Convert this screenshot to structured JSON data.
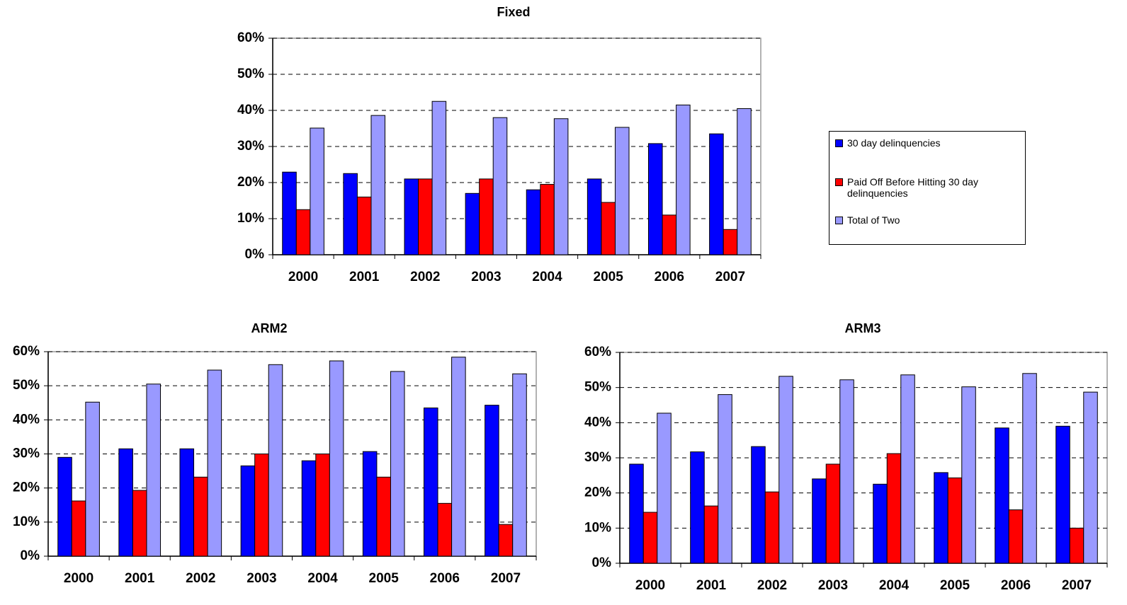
{
  "chart_data": [
    {
      "type": "bar",
      "title": "Fixed",
      "categories": [
        "2000",
        "2001",
        "2002",
        "2003",
        "2004",
        "2005",
        "2006",
        "2007"
      ],
      "series": [
        {
          "name": "30 day delinquencies",
          "color": "#0000ff",
          "values": [
            22.9,
            22.5,
            21,
            17,
            18,
            21,
            30.8,
            33.5
          ]
        },
        {
          "name": "Paid Off Before Hitting 30 day delinquencies",
          "color": "#ff0000",
          "values": [
            12.5,
            16,
            21,
            21,
            19.5,
            14.5,
            11,
            7
          ]
        },
        {
          "name": "Total of Two",
          "color": "#9999ff",
          "values": [
            35.1,
            38.6,
            42.5,
            38,
            37.7,
            35.3,
            41.5,
            40.5
          ]
        }
      ],
      "ylim": [
        0,
        60
      ],
      "yticks": [
        {
          "value": 0,
          "label": "0%"
        },
        {
          "value": 10,
          "label": "10%"
        },
        {
          "value": 20,
          "label": "20%"
        },
        {
          "value": 30,
          "label": "30%"
        },
        {
          "value": 40,
          "label": "40%"
        },
        {
          "value": 50,
          "label": "50%"
        },
        {
          "value": 60,
          "label": "60%"
        }
      ],
      "grid": true,
      "legend": "right"
    },
    {
      "type": "bar",
      "title": "ARM2",
      "categories": [
        "2000",
        "2001",
        "2002",
        "2003",
        "2004",
        "2005",
        "2006",
        "2007"
      ],
      "series": [
        {
          "color": "#0000ff",
          "values": [
            29,
            31.5,
            31.5,
            26.5,
            28,
            30.7,
            43.5,
            44.3
          ]
        },
        {
          "color": "#ff0000",
          "values": [
            16.2,
            19.3,
            23.2,
            30,
            30,
            23.2,
            15.5,
            9.3
          ]
        },
        {
          "color": "#9999ff",
          "values": [
            45.2,
            50.5,
            54.6,
            56.2,
            57.3,
            54.2,
            58.4,
            53.5
          ]
        }
      ],
      "ylim": [
        0,
        60
      ],
      "yticks": [
        {
          "value": 0,
          "label": "0%"
        },
        {
          "value": 10,
          "label": "10%"
        },
        {
          "value": 20,
          "label": "20%"
        },
        {
          "value": 30,
          "label": "30%"
        },
        {
          "value": 40,
          "label": "40%"
        },
        {
          "value": 50,
          "label": "50%"
        },
        {
          "value": 60,
          "label": "60%"
        }
      ],
      "grid": true
    },
    {
      "type": "bar",
      "title": "ARM3",
      "categories": [
        "2000",
        "2001",
        "2002",
        "2003",
        "2004",
        "2005",
        "2006",
        "2007"
      ],
      "series": [
        {
          "color": "#0000ff",
          "values": [
            28.2,
            31.7,
            33.2,
            24,
            22.5,
            25.8,
            38.5,
            39
          ]
        },
        {
          "color": "#ff0000",
          "values": [
            14.5,
            16.3,
            20.3,
            28.2,
            31.2,
            24.3,
            15.2,
            10
          ]
        },
        {
          "color": "#9999ff",
          "values": [
            42.7,
            48,
            53.2,
            52.2,
            53.6,
            50.2,
            54,
            48.7
          ]
        }
      ],
      "ylim": [
        0,
        60
      ],
      "yticks": [
        {
          "value": 0,
          "label": "0%"
        },
        {
          "value": 10,
          "label": "10%"
        },
        {
          "value": 20,
          "label": "20%"
        },
        {
          "value": 30,
          "label": "30%"
        },
        {
          "value": 40,
          "label": "40%"
        },
        {
          "value": 50,
          "label": "50%"
        },
        {
          "value": 60,
          "label": "60%"
        }
      ],
      "grid": true
    }
  ]
}
